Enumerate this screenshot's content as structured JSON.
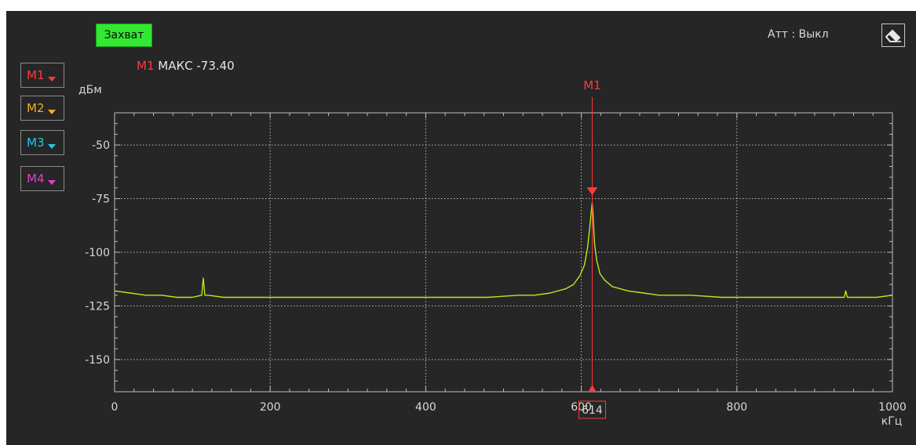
{
  "toolbar": {
    "capture_label": "Захват",
    "att_label": "Атт : Выкл",
    "eraser_icon": "eraser-icon"
  },
  "markers": [
    {
      "label": "M1",
      "color": "#ff3b3b"
    },
    {
      "label": "M2",
      "color": "#f0b020"
    },
    {
      "label": "M3",
      "color": "#22c8e8"
    },
    {
      "label": "M4",
      "color": "#e040c8"
    }
  ],
  "marker_readout": {
    "name": "M1",
    "text": "МАКС -73.40"
  },
  "colors": {
    "background": "#262626",
    "grid": "#bdbdbd",
    "trace": "#b6ea1c",
    "marker": "#ff3b3b",
    "axis": "#e0e0e0"
  },
  "chart_data": {
    "type": "line",
    "xlabel": "кГц",
    "ylabel": "дБм",
    "xlim": [
      0,
      1000
    ],
    "ylim": [
      -165,
      -35
    ],
    "x_ticks": [
      0,
      200,
      400,
      600,
      800,
      1000
    ],
    "y_ticks": [
      -50,
      -75,
      -100,
      -125,
      -150
    ],
    "grid": true,
    "series": [
      {
        "x": [
          0,
          20,
          40,
          60,
          80,
          100,
          112,
          114,
          116,
          120,
          140,
          160,
          180,
          200,
          240,
          280,
          320,
          360,
          400,
          440,
          480,
          520,
          540,
          560,
          580,
          590,
          598,
          604,
          608,
          611,
          613,
          614,
          615,
          617,
          620,
          624,
          630,
          640,
          650,
          660,
          680,
          700,
          740,
          780,
          820,
          860,
          900,
          938,
          940,
          942,
          960,
          980,
          1000
        ],
        "y": [
          -118,
          -119,
          -120,
          -120,
          -121,
          -121,
          -120,
          -112,
          -120,
          -120,
          -121,
          -121,
          -121,
          -121,
          -121,
          -121,
          -121,
          -121,
          -121,
          -121,
          -121,
          -120,
          -120,
          -119,
          -117,
          -115,
          -111,
          -106,
          -98,
          -88,
          -80,
          -77,
          -82,
          -96,
          -104,
          -110,
          -113,
          -116,
          -117,
          -118,
          -119,
          -120,
          -120,
          -121,
          -121,
          -121,
          -121,
          -121,
          -118,
          -121,
          -121,
          -121,
          -120
        ]
      }
    ],
    "marker": {
      "name": "M1",
      "x": 614,
      "y": -73.4,
      "x_readout": "614"
    }
  }
}
